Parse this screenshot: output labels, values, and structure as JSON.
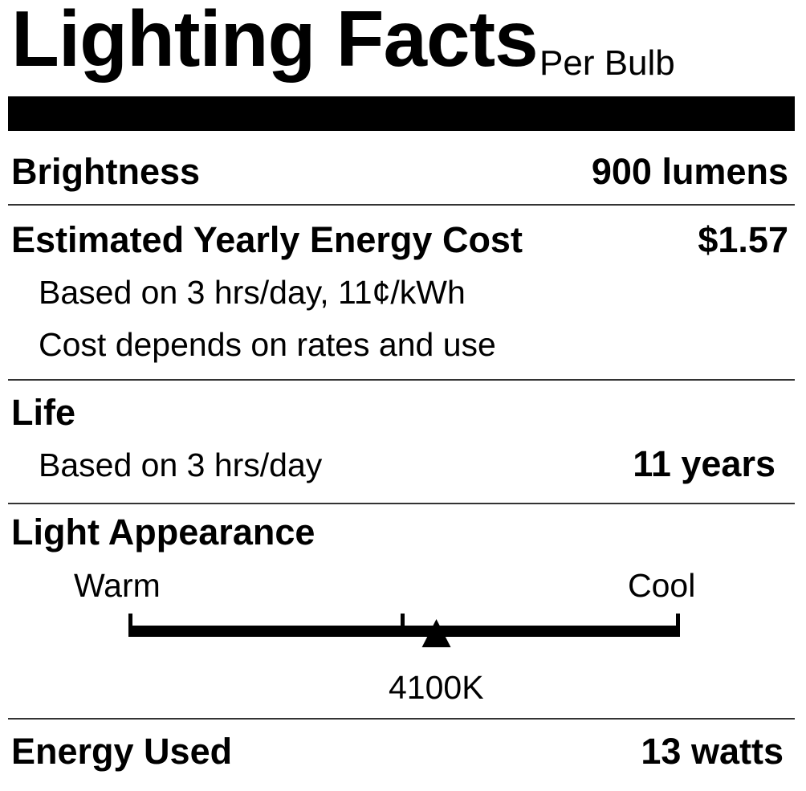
{
  "header": {
    "title": "Lighting Facts",
    "subtitle": "Per Bulb"
  },
  "brightness": {
    "label": "Brightness",
    "value": "900 lumens"
  },
  "energy_cost": {
    "label": "Estimated Yearly Energy Cost",
    "value": "$1.57",
    "note1": "Based on 3 hrs/day, 11¢/kWh",
    "note2": "Cost depends on rates and use"
  },
  "life": {
    "label": "Life",
    "note": "Based on 3 hrs/day",
    "value": "11 years"
  },
  "light_appearance": {
    "label": "Light Appearance",
    "warm_label": "Warm",
    "cool_label": "Cool",
    "value": "4100K",
    "marker_fraction": 0.557
  },
  "energy_used": {
    "label": "Energy Used",
    "value": "13 watts"
  }
}
